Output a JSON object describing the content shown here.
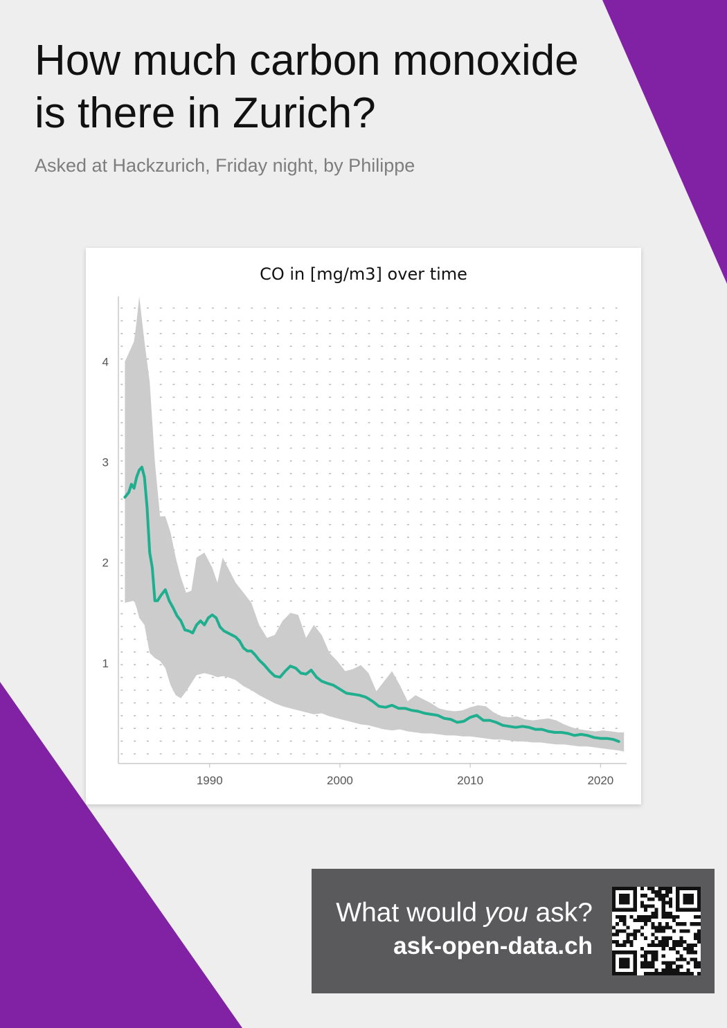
{
  "colors": {
    "background": "#eeeeee",
    "accent_purple": "#8121a4",
    "band_fill": "#cccccc",
    "line_teal": "#1fae8e",
    "cta_background": "#5a5a5c"
  },
  "header": {
    "title_line1": "How much carbon monoxide",
    "title_line2": "is there in Zurich?",
    "subtitle": "Asked at Hackzurich, Friday night, by Philippe"
  },
  "chart_data": {
    "type": "line",
    "title": "CO in [mg/m3] over time",
    "xlabel": "",
    "ylabel": "",
    "xlim": [
      1983,
      2022
    ],
    "ylim": [
      0,
      4.65
    ],
    "xticks": [
      1990,
      2000,
      2010,
      2020
    ],
    "yticks": [
      1,
      2,
      3,
      4
    ],
    "grid": "dotted",
    "legend": "none",
    "series": [
      {
        "x": [
          1983.5,
          1983.8,
          1984.0,
          1984.2,
          1984.4,
          1984.6,
          1984.8,
          1985.0,
          1985.2,
          1985.4,
          1985.6,
          1985.8,
          1986.0,
          1986.3,
          1986.6,
          1986.9,
          1987.2,
          1987.5,
          1987.8,
          1988.1,
          1988.4,
          1988.7,
          1989.0,
          1989.3,
          1989.6,
          1989.9,
          1990.2,
          1990.5,
          1990.8,
          1991.1,
          1991.4,
          1991.7,
          1992.0,
          1992.3,
          1992.6,
          1992.9,
          1993.2,
          1993.5,
          1993.8,
          1994.2,
          1994.6,
          1995.0,
          1995.4,
          1995.8,
          1996.2,
          1996.6,
          1997.0,
          1997.4,
          1997.8,
          1998.2,
          1998.6,
          1999.0,
          1999.5,
          2000.0,
          2000.5,
          2001.0,
          2001.5,
          2002.0,
          2002.5,
          2003.0,
          2003.5,
          2004.0,
          2004.5,
          2005.0,
          2005.5,
          2006.0,
          2006.5,
          2007.0,
          2007.5,
          2008.0,
          2008.5,
          2009.0,
          2009.5,
          2010.0,
          2010.5,
          2011.0,
          2011.5,
          2012.0,
          2012.5,
          2013.0,
          2013.5,
          2014.0,
          2014.5,
          2015.0,
          2015.5,
          2016.0,
          2016.5,
          2017.0,
          2017.5,
          2018.0,
          2018.5,
          2019.0,
          2019.5,
          2020.0,
          2020.5,
          2021.0,
          2021.4
        ],
        "values": [
          2.65,
          2.7,
          2.78,
          2.74,
          2.85,
          2.92,
          2.95,
          2.85,
          2.55,
          2.1,
          1.95,
          1.62,
          1.62,
          1.68,
          1.73,
          1.62,
          1.55,
          1.47,
          1.42,
          1.33,
          1.32,
          1.3,
          1.38,
          1.42,
          1.38,
          1.45,
          1.48,
          1.45,
          1.36,
          1.32,
          1.3,
          1.28,
          1.26,
          1.22,
          1.15,
          1.12,
          1.12,
          1.08,
          1.03,
          0.98,
          0.92,
          0.87,
          0.86,
          0.92,
          0.97,
          0.95,
          0.9,
          0.89,
          0.93,
          0.86,
          0.82,
          0.8,
          0.78,
          0.74,
          0.7,
          0.69,
          0.68,
          0.66,
          0.62,
          0.57,
          0.56,
          0.58,
          0.55,
          0.55,
          0.53,
          0.52,
          0.5,
          0.49,
          0.48,
          0.45,
          0.44,
          0.41,
          0.42,
          0.46,
          0.48,
          0.43,
          0.43,
          0.41,
          0.38,
          0.37,
          0.36,
          0.37,
          0.36,
          0.34,
          0.34,
          0.32,
          0.31,
          0.31,
          0.3,
          0.28,
          0.29,
          0.28,
          0.26,
          0.25,
          0.25,
          0.24,
          0.22
        ]
      }
    ],
    "band": {
      "x": [
        1983.5,
        1984.2,
        1984.4,
        1984.6,
        1985.0,
        1985.4,
        1985.8,
        1986.2,
        1986.6,
        1987.0,
        1987.4,
        1987.8,
        1988.2,
        1988.6,
        1989.0,
        1989.6,
        1990.2,
        1990.6,
        1991.0,
        1991.4,
        1992.0,
        1992.6,
        1993.2,
        1993.8,
        1994.4,
        1995.0,
        1995.6,
        1996.2,
        1996.8,
        1997.4,
        1998.0,
        1998.6,
        1999.2,
        1999.8,
        2000.4,
        2001.0,
        2001.6,
        2002.2,
        2002.8,
        2003.4,
        2004.0,
        2004.6,
        2005.2,
        2005.8,
        2006.4,
        2007.0,
        2007.6,
        2008.2,
        2008.8,
        2009.4,
        2010.0,
        2010.6,
        2011.2,
        2011.8,
        2012.4,
        2013.0,
        2013.6,
        2014.2,
        2014.8,
        2015.4,
        2016.0,
        2016.6,
        2017.2,
        2017.8,
        2018.4,
        2019.0,
        2019.6,
        2020.2,
        2020.8,
        2021.4,
        2021.8
      ],
      "upper": [
        4.0,
        4.2,
        4.4,
        4.65,
        4.2,
        3.8,
        3.0,
        2.46,
        2.46,
        2.3,
        2.05,
        1.85,
        1.7,
        1.72,
        2.05,
        2.1,
        1.95,
        1.8,
        2.05,
        1.95,
        1.8,
        1.7,
        1.6,
        1.38,
        1.25,
        1.28,
        1.42,
        1.5,
        1.48,
        1.25,
        1.38,
        1.28,
        1.1,
        1.02,
        0.92,
        0.94,
        0.98,
        0.9,
        0.72,
        0.82,
        0.92,
        0.78,
        0.62,
        0.68,
        0.64,
        0.6,
        0.55,
        0.53,
        0.52,
        0.53,
        0.56,
        0.58,
        0.57,
        0.51,
        0.47,
        0.46,
        0.47,
        0.44,
        0.43,
        0.44,
        0.45,
        0.43,
        0.39,
        0.36,
        0.34,
        0.33,
        0.32,
        0.33,
        0.32,
        0.31,
        0.31
      ],
      "lower": [
        1.6,
        1.62,
        1.55,
        1.45,
        1.38,
        1.1,
        1.05,
        1.02,
        0.95,
        0.78,
        0.68,
        0.65,
        0.72,
        0.8,
        0.88,
        0.9,
        0.88,
        0.86,
        0.87,
        0.86,
        0.83,
        0.77,
        0.73,
        0.68,
        0.64,
        0.6,
        0.57,
        0.55,
        0.53,
        0.51,
        0.49,
        0.5,
        0.47,
        0.45,
        0.43,
        0.41,
        0.39,
        0.38,
        0.36,
        0.34,
        0.33,
        0.34,
        0.32,
        0.31,
        0.3,
        0.3,
        0.29,
        0.28,
        0.28,
        0.27,
        0.27,
        0.26,
        0.25,
        0.24,
        0.24,
        0.23,
        0.22,
        0.22,
        0.21,
        0.21,
        0.2,
        0.19,
        0.19,
        0.18,
        0.17,
        0.17,
        0.16,
        0.15,
        0.14,
        0.13,
        0.12
      ]
    }
  },
  "cta": {
    "line1_pre": "What would ",
    "line1_em": "you",
    "line1_post": " ask?",
    "line2": "ask-open-data.ch",
    "qr_icon": "qr-code-icon"
  }
}
